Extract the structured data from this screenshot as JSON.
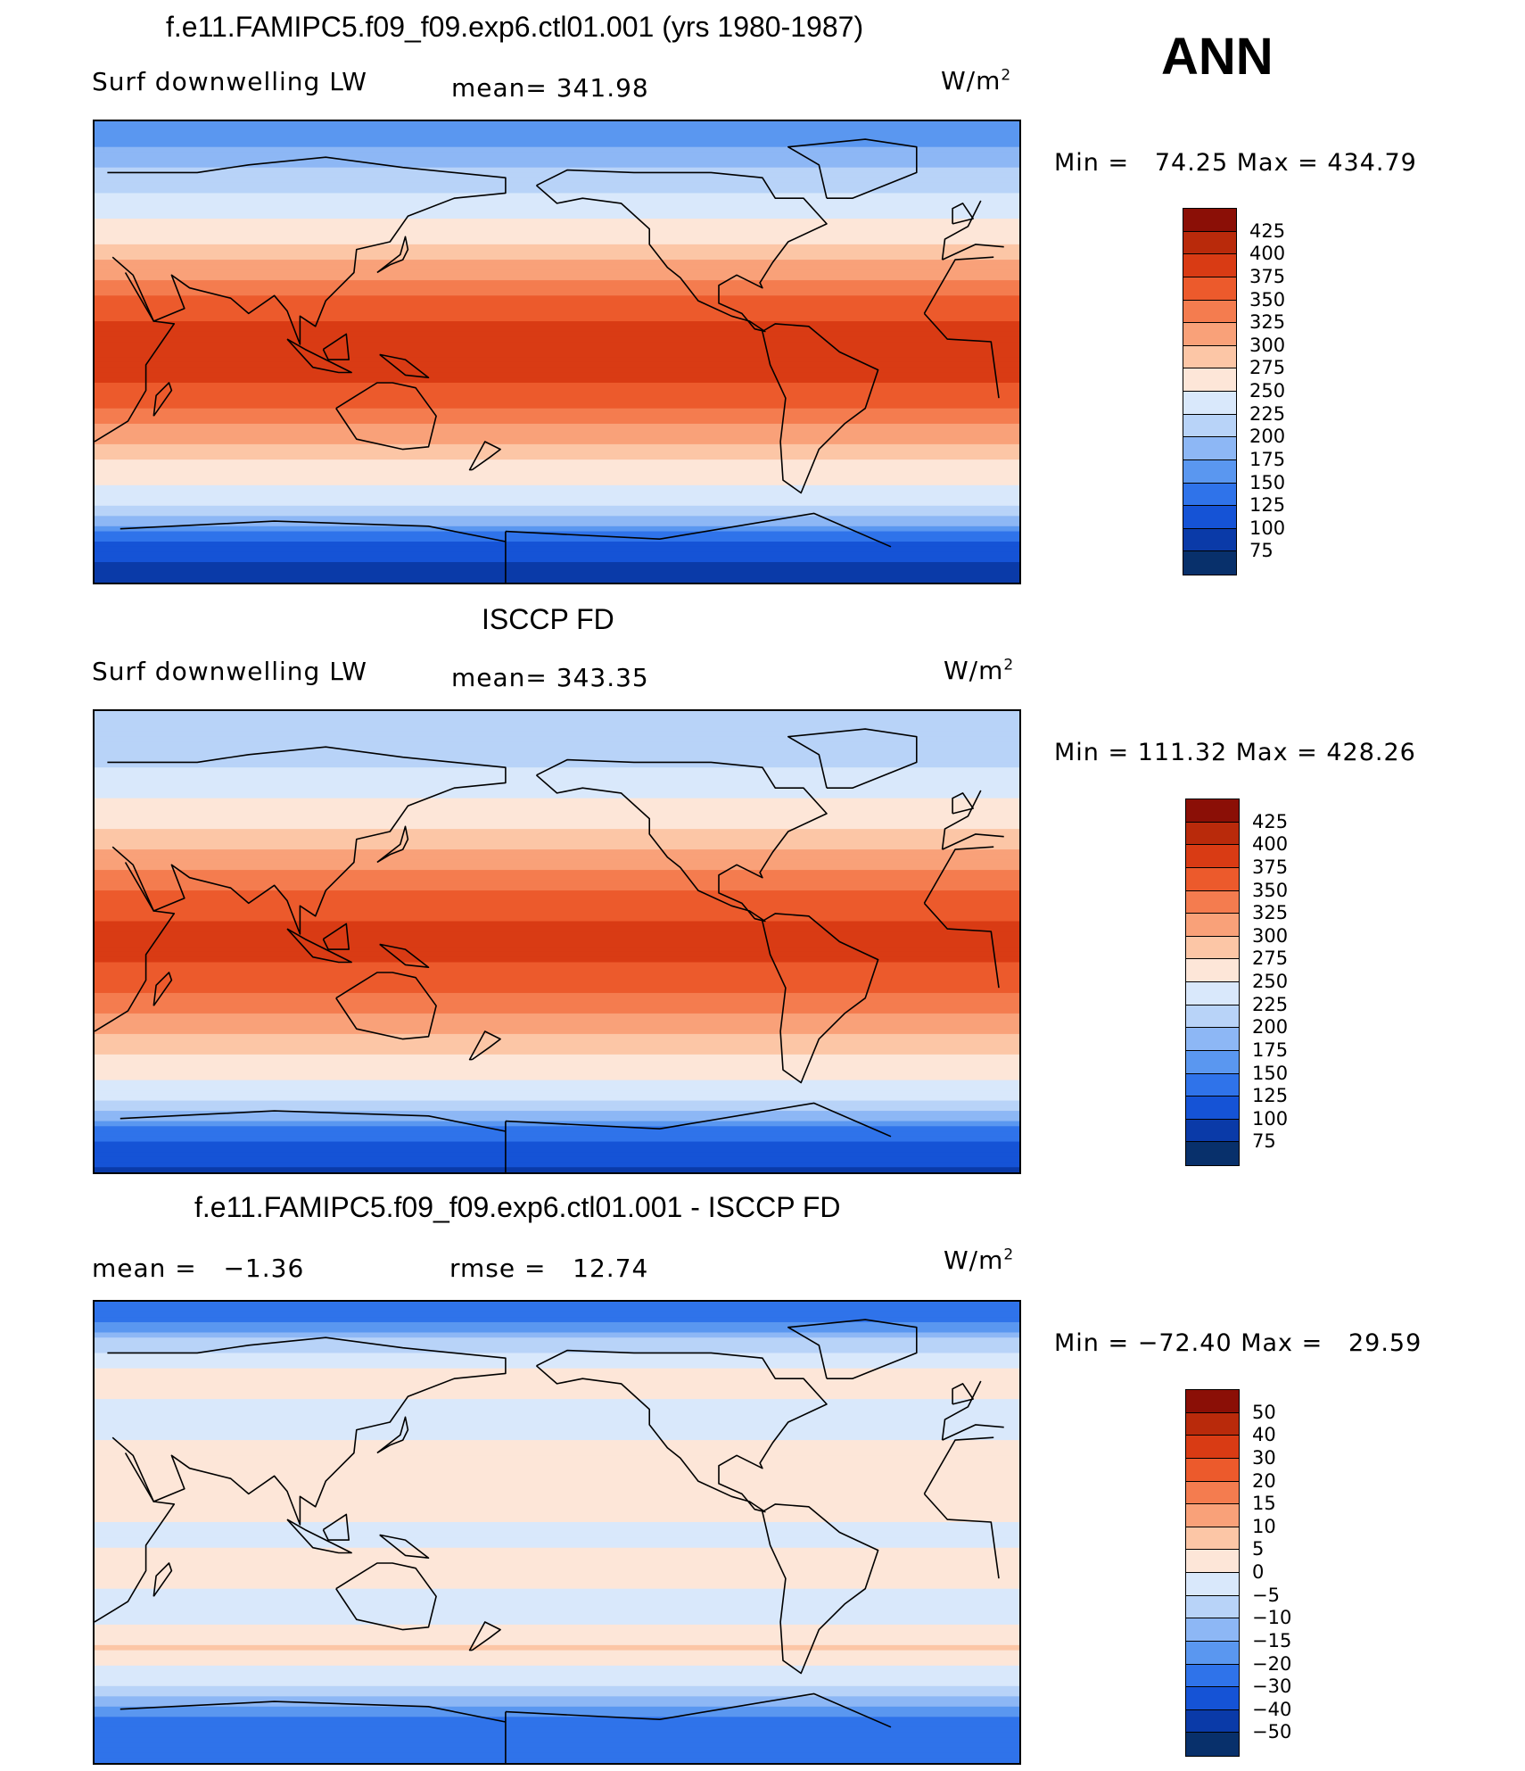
{
  "season": "ANN",
  "palettes": {
    "absolute": [
      "#f7fbff",
      "#08306b",
      "#0a3aa8",
      "#1553d6",
      "#2f73ea",
      "#5a97f0",
      "#8db7f5",
      "#b8d3f8",
      "#d9e8fb",
      "#fde6d8",
      "#fcc6a6",
      "#f9a179",
      "#f47c4f",
      "#ec5a2c",
      "#d93b14",
      "#b92a0b",
      "#8b0f06"
    ],
    "difference": [
      "#08306b",
      "#0a3aa8",
      "#1553d6",
      "#2f73ea",
      "#5a97f0",
      "#8db7f5",
      "#b8d3f8",
      "#d9e8fb",
      "#fde6d8",
      "#fcc6a6",
      "#f9a179",
      "#f47c4f",
      "#ec5a2c",
      "#d93b14",
      "#b92a0b",
      "#8b0f06"
    ]
  },
  "panels": [
    {
      "title": "f.e11.FAMIPC5.f09_f09.exp6.ctl01.001 (yrs 1980-1987)",
      "left_label": "Surf downwelling LW",
      "center_label": "mean= 341.98",
      "units": "W/m",
      "units_sup": "2",
      "minmax": "Min =   74.25 Max = 434.79",
      "levels": [
        "425",
        "400",
        "375",
        "350",
        "325",
        "300",
        "275",
        "250",
        "225",
        "200",
        "175",
        "150",
        "125",
        "100",
        "75"
      ],
      "palette": "absolute"
    },
    {
      "title": "ISCCP FD",
      "left_label": "Surf downwelling LW",
      "center_label": "mean= 343.35",
      "units": "W/m",
      "units_sup": "2",
      "minmax": "Min = 111.32 Max = 428.26",
      "levels": [
        "425",
        "400",
        "375",
        "350",
        "325",
        "300",
        "275",
        "250",
        "225",
        "200",
        "175",
        "150",
        "125",
        "100",
        "75"
      ],
      "palette": "absolute"
    },
    {
      "title": "f.e11.FAMIPC5.f09_f09.exp6.ctl01.001 - ISCCP FD",
      "left_label": "mean =   −1.36",
      "center_label": "rmse =   12.74",
      "units": "W/m",
      "units_sup": "2",
      "minmax": "Min = −72.40 Max =   29.59",
      "levels": [
        "50",
        "40",
        "30",
        "20",
        "15",
        "10",
        "5",
        "0",
        "−5",
        "−10",
        "−15",
        "−20",
        "−30",
        "−40",
        "−50"
      ],
      "palette": "difference"
    }
  ],
  "chart_data": [
    {
      "type": "heatmap",
      "title": "f.e11.FAMIPC5.f09_f09.exp6.ctl01.001 (yrs 1980-1987)",
      "variable": "Surf downwelling LW",
      "units": "W/m2",
      "mean": 341.98,
      "min": 74.25,
      "max": 434.79,
      "contour_levels": [
        75,
        100,
        125,
        150,
        175,
        200,
        225,
        250,
        275,
        300,
        325,
        350,
        375,
        400,
        425
      ],
      "zonal_profile": {
        "lat": [
          90,
          75,
          60,
          45,
          30,
          15,
          0,
          -15,
          -30,
          -45,
          -60,
          -75,
          -90
        ],
        "value": [
          175,
          215,
          255,
          290,
          345,
          395,
          420,
          395,
          345,
          290,
          255,
          140,
          110
        ]
      }
    },
    {
      "type": "heatmap",
      "title": "ISCCP FD",
      "variable": "Surf downwelling LW",
      "units": "W/m2",
      "mean": 343.35,
      "min": 111.32,
      "max": 428.26,
      "contour_levels": [
        75,
        100,
        125,
        150,
        175,
        200,
        225,
        250,
        275,
        300,
        325,
        350,
        375,
        400,
        425
      ],
      "zonal_profile": {
        "lat": [
          90,
          75,
          60,
          45,
          30,
          15,
          0,
          -15,
          -30,
          -45,
          -60,
          -75,
          -90
        ],
        "value": [
          230,
          235,
          265,
          295,
          345,
          390,
          410,
          390,
          345,
          295,
          260,
          160,
          120
        ]
      }
    },
    {
      "type": "heatmap",
      "title": "f.e11.FAMIPC5.f09_f09.exp6.ctl01.001 - ISCCP FD",
      "units": "W/m2",
      "mean": -1.36,
      "rmse": 12.74,
      "min": -72.4,
      "max": 29.59,
      "contour_levels": [
        -50,
        -40,
        -30,
        -20,
        -15,
        -10,
        -5,
        0,
        5,
        10,
        15,
        20,
        30,
        40,
        50
      ],
      "zonal_profile": {
        "lat": [
          90,
          75,
          60,
          45,
          30,
          15,
          0,
          -15,
          -30,
          -45,
          -60,
          -75,
          -90
        ],
        "value": [
          -30,
          -10,
          3,
          -3,
          2,
          4,
          -2,
          3,
          -3,
          5,
          -5,
          -25,
          -30
        ]
      }
    }
  ]
}
